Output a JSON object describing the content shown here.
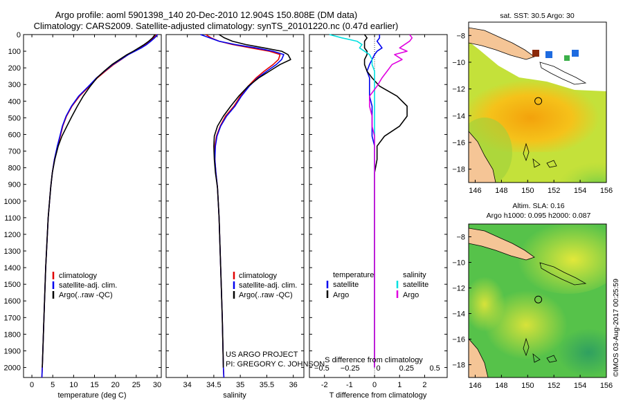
{
  "title_line1": "Argo profile: aoml 5901398_140 20-Dec-2010 12.904S 150.808E (DM data)",
  "title_line2": "Climatology: CARS2009. Satellite-adjusted climatology: synTS_20101220.nc (0.47d earlier)",
  "project_line1": "US ARGO PROJECT",
  "project_line2": "PI: GREGORY C. JOHNSON",
  "timestamp": "©IMOS 03-Aug-2017 00:25:59",
  "colors": {
    "climatology": "#e00000",
    "satellite_clim": "#0000ee",
    "argo": "#000000",
    "salinity_sat": "#00e0e0",
    "salinity_argo": "#e000e0",
    "land": "#f5c596"
  },
  "chart_data": [
    {
      "type": "line",
      "name": "temperature-panel",
      "xlabel": "temperature (deg C)",
      "ylabel": "",
      "xlim": [
        -2,
        31
      ],
      "ylim": [
        2060,
        0
      ],
      "xticks": [
        0,
        5,
        10,
        15,
        20,
        25,
        30
      ],
      "yticks": [
        0,
        100,
        200,
        300,
        400,
        500,
        600,
        700,
        800,
        900,
        1000,
        1100,
        1200,
        1300,
        1400,
        1500,
        1600,
        1700,
        1800,
        1900,
        2000
      ],
      "legend": [
        "climatology",
        "satellite-adj. clim.",
        "Argo(..raw -QC)"
      ],
      "legend_position": "lower-middle",
      "series": [
        {
          "name": "climatology",
          "color": "#e00000",
          "x": [
            29.9,
            29.2,
            28.4,
            27.3,
            26.0,
            24.6,
            23.1,
            21.4,
            19.6,
            17.6,
            15.7,
            13.8,
            11.4,
            9.6,
            8.3,
            7.4,
            6.8,
            6.2,
            5.4,
            4.9,
            4.5,
            3.9,
            3.3,
            2.9,
            2.5,
            2.4
          ],
          "y": [
            0,
            20,
            40,
            60,
            80,
            100,
            120,
            150,
            180,
            220,
            260,
            310,
            370,
            430,
            490,
            550,
            610,
            670,
            750,
            830,
            920,
            1100,
            1400,
            1700,
            2000,
            2060
          ]
        },
        {
          "name": "satellite-adj. clim.",
          "color": "#0000ee",
          "x": [
            30.1,
            29.4,
            28.5,
            27.5,
            26.2,
            24.7,
            23.1,
            21.3,
            19.4,
            17.4,
            15.5,
            13.6,
            11.2,
            9.5,
            8.2,
            7.3,
            6.7,
            6.1,
            5.4,
            4.9,
            4.5,
            3.9,
            3.3,
            2.9,
            2.5,
            2.4
          ],
          "y": [
            0,
            20,
            40,
            60,
            80,
            100,
            120,
            150,
            180,
            220,
            260,
            310,
            370,
            430,
            490,
            550,
            610,
            670,
            750,
            830,
            920,
            1100,
            1400,
            1700,
            2000,
            2060
          ]
        },
        {
          "name": "Argo(..raw -QC)",
          "color": "#000000",
          "x": [
            29.5,
            28.9,
            28.0,
            26.9,
            25.6,
            24.3,
            22.8,
            21.0,
            19.2,
            17.3,
            15.6,
            14.0,
            12.3,
            10.9,
            9.6,
            8.4,
            7.2,
            6.3,
            5.5,
            4.9,
            4.5,
            3.9,
            3.3,
            2.9,
            2.5
          ],
          "y": [
            0,
            20,
            40,
            60,
            80,
            100,
            120,
            150,
            180,
            220,
            260,
            310,
            370,
            430,
            490,
            550,
            610,
            670,
            750,
            830,
            920,
            1100,
            1400,
            1700,
            2000
          ]
        }
      ]
    },
    {
      "type": "line",
      "name": "salinity-panel",
      "xlabel": "salinity",
      "ylabel": "",
      "xlim": [
        33.6,
        36.2
      ],
      "ylim": [
        2060,
        0
      ],
      "xticks": [
        34,
        34.5,
        35,
        35.5,
        36
      ],
      "xticklabels": [
        "34",
        "34.5",
        "35",
        "35.5",
        "36"
      ],
      "legend": [
        "climatology",
        "satellite-adj. clim.",
        "Argo(..raw -QC)"
      ],
      "legend_position": "lower-middle",
      "series": [
        {
          "name": "climatology",
          "color": "#e00000",
          "x": [
            34.35,
            34.45,
            34.6,
            34.85,
            35.2,
            35.55,
            35.75,
            35.72,
            35.62,
            35.45,
            35.3,
            35.15,
            35.0,
            34.88,
            34.72,
            34.62,
            34.55,
            34.52,
            34.52,
            34.54,
            34.57,
            34.6,
            34.63,
            34.66,
            34.68,
            34.69
          ],
          "y": [
            0,
            20,
            40,
            60,
            80,
            100,
            120,
            150,
            180,
            220,
            260,
            310,
            370,
            430,
            490,
            550,
            610,
            670,
            750,
            830,
            920,
            1100,
            1400,
            1700,
            2000,
            2060
          ]
        },
        {
          "name": "satellite-adj. clim.",
          "color": "#0000ee",
          "x": [
            34.25,
            34.42,
            34.6,
            34.9,
            35.3,
            35.62,
            35.82,
            35.78,
            35.68,
            35.5,
            35.33,
            35.17,
            35.02,
            34.9,
            34.74,
            34.63,
            34.56,
            34.53,
            34.52,
            34.54,
            34.57,
            34.6,
            34.63,
            34.66,
            34.68,
            34.69
          ],
          "y": [
            0,
            20,
            40,
            60,
            80,
            100,
            120,
            150,
            180,
            220,
            260,
            310,
            370,
            430,
            490,
            550,
            610,
            670,
            750,
            830,
            920,
            1100,
            1400,
            1700,
            2000,
            2060
          ]
        },
        {
          "name": "Argo(..raw -QC)",
          "color": "#000000",
          "x": [
            34.6,
            34.7,
            34.85,
            35.1,
            35.45,
            35.78,
            35.9,
            35.95,
            35.75,
            35.55,
            35.35,
            35.15,
            34.97,
            34.82,
            34.68,
            34.57,
            34.51,
            34.5,
            34.51,
            34.53,
            34.57,
            34.6,
            34.63,
            34.66,
            34.68
          ],
          "y": [
            0,
            20,
            40,
            60,
            80,
            100,
            120,
            150,
            180,
            220,
            260,
            310,
            370,
            430,
            490,
            550,
            610,
            670,
            750,
            830,
            920,
            1100,
            1400,
            1700,
            2000
          ]
        }
      ]
    },
    {
      "type": "line",
      "name": "difference-panel",
      "xlabel": "T difference from climatology",
      "xlabel_top": "S difference from climatology",
      "xlim": [
        -2.6,
        2.9
      ],
      "ylim": [
        2060,
        0
      ],
      "xticks": [
        -2,
        -1,
        0,
        1,
        2
      ],
      "xticks_top": [
        -0.5,
        -0.25,
        0,
        0.25,
        0.5
      ],
      "xticklabels_top": [
        "−0.5",
        "−0.25",
        "0",
        "0.25",
        "0.5"
      ],
      "legend_headers": [
        "temperature",
        "salinity"
      ],
      "legend": [
        "satellite",
        "Argo",
        "satellite",
        "Argo"
      ],
      "series": [
        {
          "name": "temperature satellite",
          "color": "#0000ee",
          "x": [
            0.2,
            0.2,
            0.1,
            0.2,
            0.3,
            0.1,
            0,
            -0.1,
            -0.2,
            -0.3,
            -0.2,
            -0.2,
            -0.2,
            -0.1,
            -0.1,
            -0.1,
            -0.1,
            0,
            0,
            0,
            0,
            0,
            0,
            0
          ],
          "y": [
            0,
            20,
            40,
            60,
            80,
            100,
            120,
            150,
            180,
            220,
            260,
            310,
            370,
            430,
            490,
            550,
            610,
            670,
            750,
            830,
            920,
            1100,
            1400,
            2000
          ]
        },
        {
          "name": "temperature Argo",
          "color": "#000000",
          "x": [
            -0.4,
            -0.3,
            -0.4,
            -0.4,
            -0.4,
            -0.3,
            -0.3,
            -0.4,
            -0.4,
            -0.3,
            -0.1,
            0.2,
            0.9,
            1.3,
            1.3,
            1.0,
            0.4,
            0.1,
            0.1,
            0,
            0,
            0,
            0,
            0
          ],
          "y": [
            0,
            20,
            40,
            60,
            80,
            100,
            120,
            150,
            180,
            220,
            260,
            310,
            370,
            430,
            490,
            550,
            610,
            670,
            750,
            830,
            920,
            1100,
            1400,
            2000
          ]
        },
        {
          "name": "salinity satellite",
          "color": "#00e0e0",
          "x": [
            -1.8,
            -1.3,
            -0.7,
            -0.5,
            -0.6,
            -0.4,
            -0.2,
            -0.1,
            -0.1,
            0,
            0,
            0,
            0,
            0,
            0,
            0,
            0,
            0,
            0,
            0,
            0,
            0,
            0,
            0
          ],
          "y": [
            0,
            20,
            40,
            60,
            80,
            100,
            120,
            150,
            180,
            220,
            260,
            310,
            370,
            430,
            490,
            550,
            610,
            670,
            750,
            830,
            920,
            1100,
            1400,
            2000
          ]
        },
        {
          "name": "salinity Argo",
          "color": "#e000e0",
          "x": [
            1.4,
            1.5,
            1.4,
            1.2,
            1.0,
            1.3,
            0.8,
            1.1,
            0.7,
            0.5,
            0.3,
            0.1,
            -0.2,
            -0.2,
            -0.1,
            -0.1,
            0,
            0,
            0,
            0,
            0,
            0,
            0,
            0
          ],
          "y": [
            0,
            20,
            40,
            60,
            80,
            100,
            120,
            150,
            180,
            220,
            260,
            310,
            370,
            430,
            490,
            550,
            610,
            670,
            750,
            830,
            920,
            1100,
            1400,
            2000
          ]
        }
      ]
    },
    {
      "type": "heatmap",
      "name": "sst-map",
      "title": "sat. SST: 30.5 Argo: 30",
      "xlim": [
        145.5,
        156
      ],
      "ylim": [
        -19,
        -7
      ],
      "xticks": [
        146,
        148,
        150,
        152,
        154,
        156
      ],
      "yticks": [
        -8,
        -10,
        -12,
        -14,
        -16,
        -18
      ],
      "profile_location": {
        "lon": 150.808,
        "lat": -12.904
      }
    },
    {
      "type": "heatmap",
      "name": "sla-map",
      "title_line1": "Altim. SLA: 0.16",
      "title_line2": "Argo h1000: 0.095 h2000: 0.087",
      "xlim": [
        145.5,
        156
      ],
      "ylim": [
        -19,
        -7
      ],
      "xticks": [
        146,
        148,
        150,
        152,
        154,
        156
      ],
      "yticks": [
        -8,
        -10,
        -12,
        -14,
        -16,
        -18
      ],
      "profile_location": {
        "lon": 150.808,
        "lat": -12.904
      }
    }
  ]
}
